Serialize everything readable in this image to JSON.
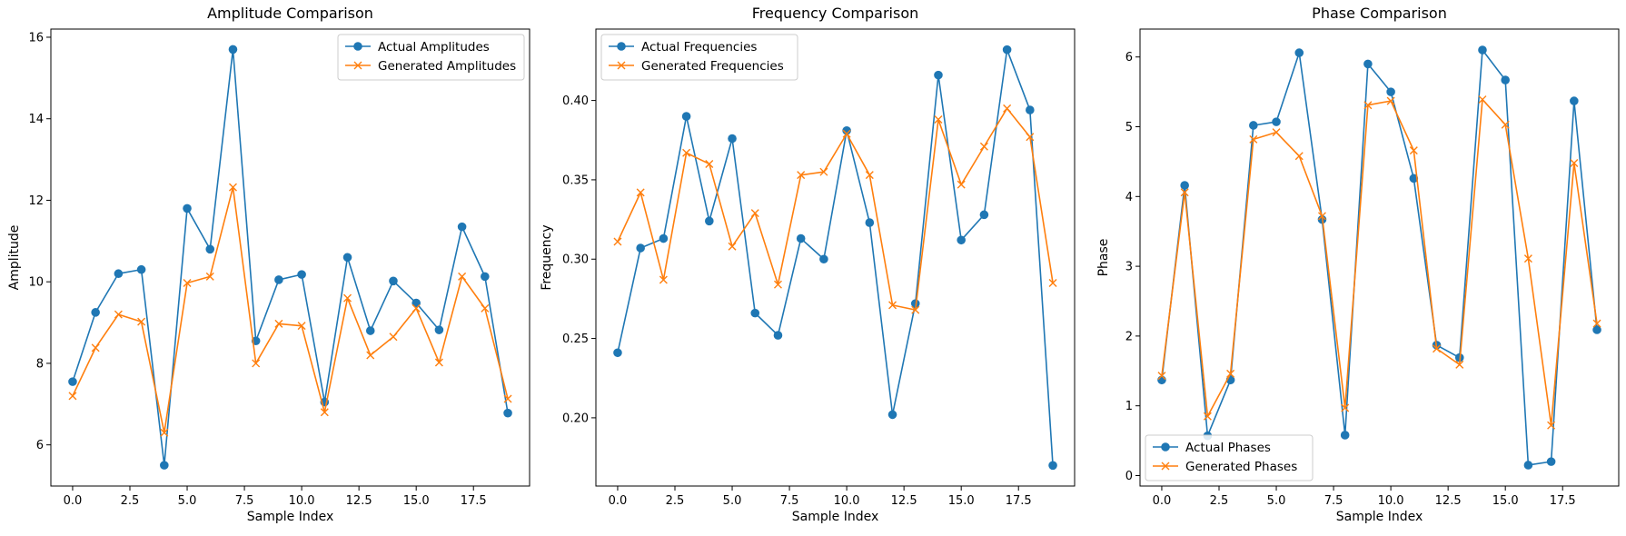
{
  "chart_data": [
    {
      "type": "line",
      "title": "Amplitude Comparison",
      "xlabel": "Sample Index",
      "ylabel": "Amplitude",
      "xlim": [
        -0.95,
        19.95
      ],
      "ylim": [
        4.99,
        16.2
      ],
      "xticks": [
        0,
        2.5,
        5,
        7.5,
        10,
        12.5,
        15,
        17.5
      ],
      "xtick_labels": [
        "0.0",
        "2.5",
        "5.0",
        "7.5",
        "10.0",
        "12.5",
        "15.0",
        "17.5"
      ],
      "yticks": [
        6,
        8,
        10,
        12,
        14,
        16
      ],
      "ytick_labels": [
        "6",
        "8",
        "10",
        "12",
        "14",
        "16"
      ],
      "legend_position": "top-right",
      "x": [
        0,
        1,
        2,
        3,
        4,
        5,
        6,
        7,
        8,
        9,
        10,
        11,
        12,
        13,
        14,
        15,
        16,
        17,
        18,
        19
      ],
      "series": [
        {
          "name": "Actual Amplitudes",
          "marker": "circle",
          "color": "#1f77b4",
          "values": [
            7.55,
            9.25,
            10.2,
            10.3,
            5.5,
            11.8,
            10.8,
            15.7,
            8.55,
            10.05,
            10.18,
            7.05,
            10.6,
            8.8,
            10.02,
            9.48,
            8.82,
            11.35,
            10.13,
            6.78
          ]
        },
        {
          "name": "Generated Amplitudes",
          "marker": "x",
          "color": "#ff7f0e",
          "values": [
            7.2,
            8.38,
            9.2,
            9.02,
            6.3,
            9.97,
            10.13,
            12.32,
            8.0,
            8.97,
            8.92,
            6.8,
            9.6,
            8.2,
            8.65,
            9.35,
            8.02,
            10.13,
            9.35,
            7.13
          ]
        }
      ]
    },
    {
      "type": "line",
      "title": "Frequency Comparison",
      "xlabel": "Sample Index",
      "ylabel": "Frequency",
      "xlim": [
        -0.95,
        19.95
      ],
      "ylim": [
        0.157,
        0.445
      ],
      "xticks": [
        0,
        2.5,
        5,
        7.5,
        10,
        12.5,
        15,
        17.5
      ],
      "xtick_labels": [
        "0.0",
        "2.5",
        "5.0",
        "7.5",
        "10.0",
        "12.5",
        "15.0",
        "17.5"
      ],
      "yticks": [
        0.2,
        0.25,
        0.3,
        0.35,
        0.4
      ],
      "ytick_labels": [
        "0.20",
        "0.25",
        "0.30",
        "0.35",
        "0.40"
      ],
      "legend_position": "top-left",
      "x": [
        0,
        1,
        2,
        3,
        4,
        5,
        6,
        7,
        8,
        9,
        10,
        11,
        12,
        13,
        14,
        15,
        16,
        17,
        18,
        19
      ],
      "series": [
        {
          "name": "Actual Frequencies",
          "marker": "circle",
          "color": "#1f77b4",
          "values": [
            0.241,
            0.307,
            0.313,
            0.39,
            0.324,
            0.376,
            0.266,
            0.252,
            0.313,
            0.3,
            0.381,
            0.323,
            0.202,
            0.272,
            0.416,
            0.312,
            0.328,
            0.432,
            0.394,
            0.17
          ]
        },
        {
          "name": "Generated Frequencies",
          "marker": "x",
          "color": "#ff7f0e",
          "values": [
            0.311,
            0.342,
            0.287,
            0.367,
            0.36,
            0.308,
            0.329,
            0.284,
            0.353,
            0.355,
            0.379,
            0.353,
            0.271,
            0.268,
            0.388,
            0.347,
            0.371,
            0.395,
            0.377,
            0.285
          ]
        }
      ]
    },
    {
      "type": "line",
      "title": "Phase Comparison",
      "xlabel": "Sample Index",
      "ylabel": "Phase",
      "xlim": [
        -0.95,
        19.95
      ],
      "ylim": [
        -0.15,
        6.4
      ],
      "xticks": [
        0,
        2.5,
        5,
        7.5,
        10,
        12.5,
        15,
        17.5
      ],
      "xtick_labels": [
        "0.0",
        "2.5",
        "5.0",
        "7.5",
        "10.0",
        "12.5",
        "15.0",
        "17.5"
      ],
      "yticks": [
        0,
        1,
        2,
        3,
        4,
        5,
        6
      ],
      "ytick_labels": [
        "0",
        "1",
        "2",
        "3",
        "4",
        "5",
        "6"
      ],
      "legend_position": "bottom-left",
      "x": [
        0,
        1,
        2,
        3,
        4,
        5,
        6,
        7,
        8,
        9,
        10,
        11,
        12,
        13,
        14,
        15,
        16,
        17,
        18,
        19
      ],
      "series": [
        {
          "name": "Actual Phases",
          "marker": "circle",
          "color": "#1f77b4",
          "values": [
            1.37,
            4.16,
            0.57,
            1.37,
            5.02,
            5.07,
            6.06,
            3.67,
            0.58,
            5.9,
            5.5,
            4.26,
            1.87,
            1.69,
            6.1,
            5.67,
            0.15,
            0.2,
            5.37,
            2.09
          ]
        },
        {
          "name": "Generated Phases",
          "marker": "x",
          "color": "#ff7f0e",
          "values": [
            1.43,
            4.06,
            0.85,
            1.46,
            4.82,
            4.92,
            4.58,
            3.72,
            0.97,
            5.31,
            5.37,
            4.66,
            1.82,
            1.59,
            5.39,
            5.03,
            3.11,
            0.72,
            4.48,
            2.18
          ]
        }
      ]
    }
  ]
}
